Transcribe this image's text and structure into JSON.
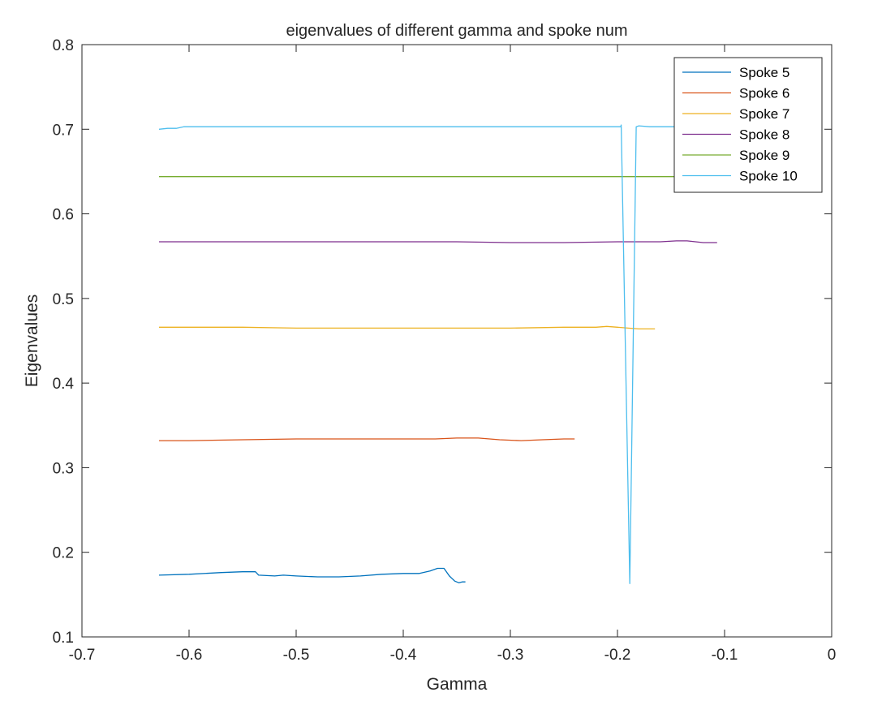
{
  "chart_data": {
    "type": "line",
    "title": "eigenvalues of different gamma and spoke num",
    "xlabel": "Gamma",
    "ylabel": "Eigenvalues",
    "xlim": [
      -0.7,
      0
    ],
    "ylim": [
      0.1,
      0.8
    ],
    "xticks": [
      -0.7,
      -0.6,
      -0.5,
      -0.4,
      -0.3,
      -0.2,
      -0.1,
      0
    ],
    "xtick_labels": [
      "-0.7",
      "-0.6",
      "-0.5",
      "-0.4",
      "-0.3",
      "-0.2",
      "-0.1",
      "0"
    ],
    "yticks": [
      0.1,
      0.2,
      0.3,
      0.4,
      0.5,
      0.6,
      0.7,
      0.8
    ],
    "ytick_labels": [
      "0.1",
      "0.2",
      "0.3",
      "0.4",
      "0.5",
      "0.6",
      "0.7",
      "0.8"
    ],
    "grid": false,
    "legend_position": "top-right",
    "series": [
      {
        "name": "Spoke 5",
        "color": "#0072BD",
        "x": [
          -0.628,
          -0.6,
          -0.57,
          -0.55,
          -0.538,
          -0.535,
          -0.52,
          -0.512,
          -0.5,
          -0.48,
          -0.46,
          -0.44,
          -0.42,
          -0.4,
          -0.385,
          -0.375,
          -0.368,
          -0.362,
          -0.357,
          -0.352,
          -0.348,
          -0.345,
          -0.342
        ],
        "y": [
          0.173,
          0.174,
          0.176,
          0.177,
          0.177,
          0.173,
          0.172,
          0.173,
          0.172,
          0.171,
          0.171,
          0.172,
          0.174,
          0.175,
          0.175,
          0.178,
          0.181,
          0.181,
          0.172,
          0.166,
          0.164,
          0.165,
          0.165
        ]
      },
      {
        "name": "Spoke 6",
        "color": "#D95319",
        "x": [
          -0.628,
          -0.6,
          -0.55,
          -0.5,
          -0.45,
          -0.4,
          -0.37,
          -0.35,
          -0.33,
          -0.31,
          -0.29,
          -0.27,
          -0.25,
          -0.24
        ],
        "y": [
          0.332,
          0.332,
          0.333,
          0.334,
          0.334,
          0.334,
          0.334,
          0.335,
          0.335,
          0.333,
          0.332,
          0.333,
          0.334,
          0.334
        ]
      },
      {
        "name": "Spoke 7",
        "color": "#EDB120",
        "x": [
          -0.628,
          -0.6,
          -0.55,
          -0.5,
          -0.45,
          -0.4,
          -0.35,
          -0.3,
          -0.25,
          -0.22,
          -0.21,
          -0.2,
          -0.19,
          -0.18,
          -0.165
        ],
        "y": [
          0.466,
          0.466,
          0.466,
          0.465,
          0.465,
          0.465,
          0.465,
          0.465,
          0.466,
          0.466,
          0.467,
          0.466,
          0.465,
          0.464,
          0.464
        ]
      },
      {
        "name": "Spoke 8",
        "color": "#7E2F8E",
        "x": [
          -0.628,
          -0.6,
          -0.55,
          -0.5,
          -0.45,
          -0.4,
          -0.35,
          -0.3,
          -0.25,
          -0.2,
          -0.16,
          -0.145,
          -0.135,
          -0.12,
          -0.107
        ],
        "y": [
          0.567,
          0.567,
          0.567,
          0.567,
          0.567,
          0.567,
          0.567,
          0.566,
          0.566,
          0.567,
          0.567,
          0.568,
          0.568,
          0.566,
          0.566
        ]
      },
      {
        "name": "Spoke 9",
        "color": "#77AC30",
        "x": [
          -0.628,
          -0.6,
          -0.55,
          -0.5,
          -0.45,
          -0.4,
          -0.35,
          -0.3,
          -0.25,
          -0.2,
          -0.15,
          -0.12
        ],
        "y": [
          0.644,
          0.644,
          0.644,
          0.644,
          0.644,
          0.644,
          0.644,
          0.644,
          0.644,
          0.644,
          0.644,
          0.644
        ]
      },
      {
        "name": "Spoke 10",
        "color": "#4DBEEE",
        "x": [
          -0.628,
          -0.62,
          -0.612,
          -0.605,
          -0.6,
          -0.55,
          -0.5,
          -0.45,
          -0.4,
          -0.35,
          -0.3,
          -0.25,
          -0.21,
          -0.197,
          -0.1965,
          -0.1885,
          -0.1825,
          -0.18,
          -0.17,
          -0.16,
          -0.15,
          -0.13
        ],
        "y": [
          0.7,
          0.701,
          0.701,
          0.703,
          0.703,
          0.703,
          0.703,
          0.703,
          0.703,
          0.703,
          0.703,
          0.703,
          0.703,
          0.703,
          0.705,
          0.163,
          0.703,
          0.704,
          0.703,
          0.703,
          0.703,
          0.703
        ]
      }
    ]
  }
}
